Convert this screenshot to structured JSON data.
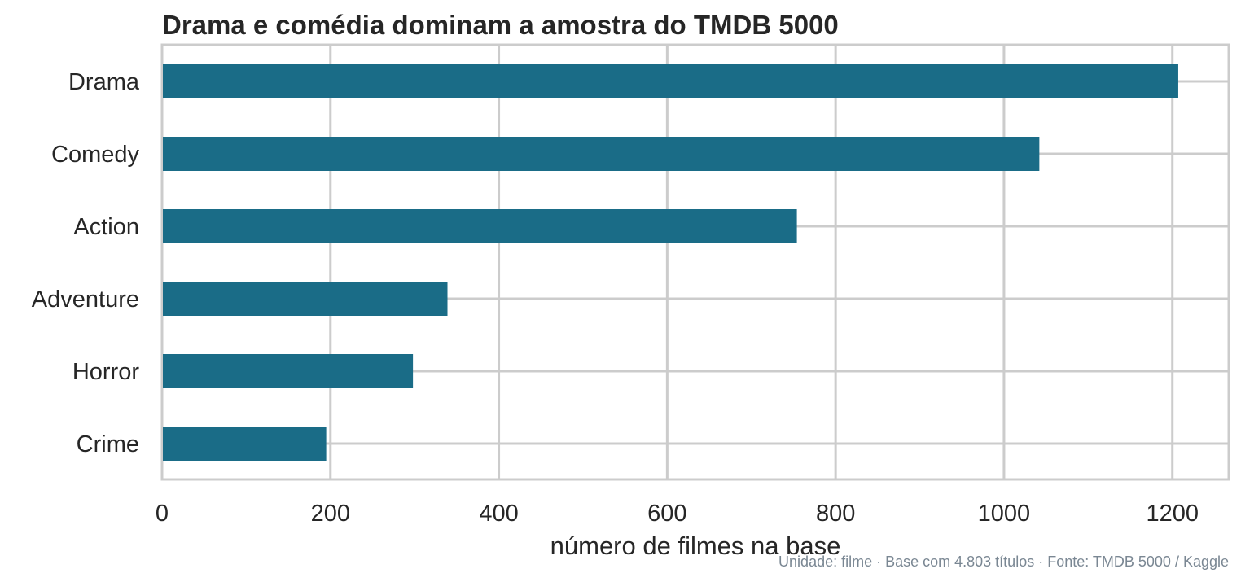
{
  "chart_data": {
    "type": "bar",
    "orientation": "horizontal",
    "title": "Drama e comédia dominam a amostra do TMDB 5000",
    "xlabel": "número de filmes na base",
    "ylabel": "",
    "categories": [
      "Drama",
      "Comedy",
      "Action",
      "Adventure",
      "Horror",
      "Crime"
    ],
    "values": [
      1207,
      1042,
      754,
      339,
      298,
      195
    ],
    "xlim": [
      0,
      1267
    ],
    "xticks": [
      0,
      200,
      400,
      600,
      800,
      1000,
      1200
    ],
    "xtick_labels": [
      "0",
      "200",
      "400",
      "600",
      "800",
      "1000",
      "1200"
    ],
    "grid": true,
    "legend": "none",
    "bar_color": "#1a6c87",
    "grid_color": "#cccccc",
    "note": "Unidade: filme · Base com 4.803 títulos · Fonte: TMDB 5000 / Kaggle"
  }
}
